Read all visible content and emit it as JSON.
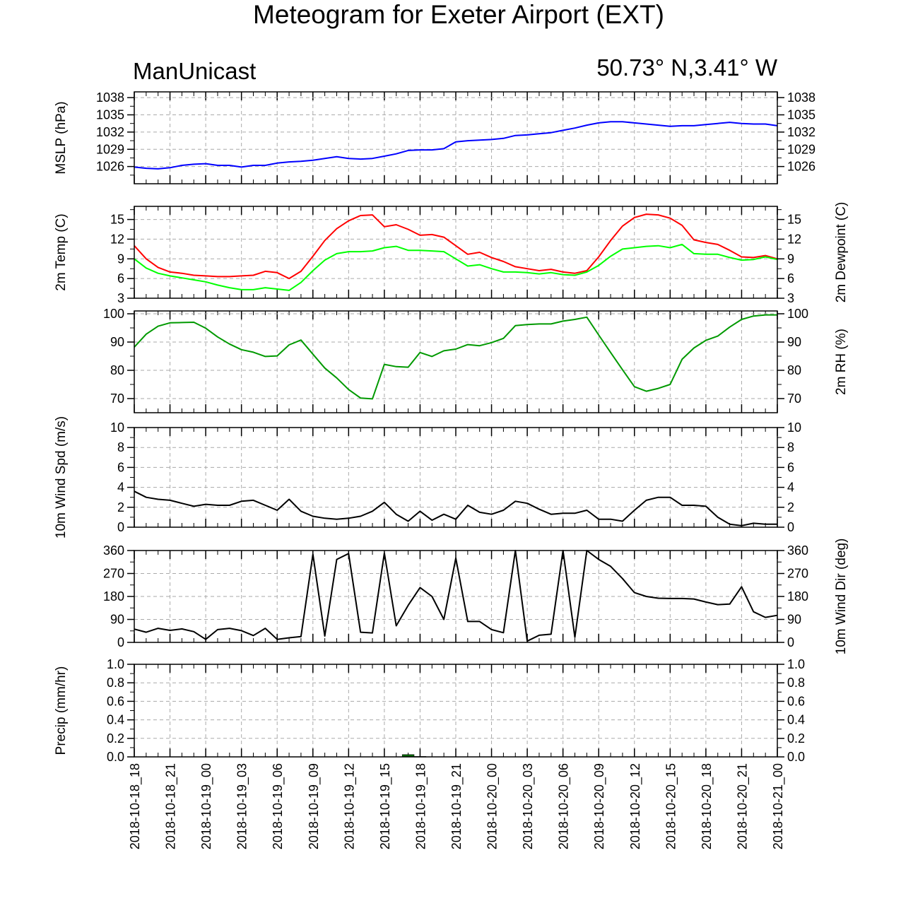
{
  "page_title": "Meteogram for Exeter Airport (EXT)",
  "model_name": "ManUnicast",
  "location": "50.73° N,3.41° W",
  "colors": {
    "mslp": "#0000ff",
    "temperature": "#ff0000",
    "dewpoint": "#00ff00",
    "rh": "#009900",
    "wind": "#000000",
    "precip": "#006400",
    "grid": "#aaaaaa"
  },
  "chart_data": {
    "type": "line",
    "x_axis": {
      "labels": [
        "2018-10-18_18",
        "2018-10-18_21",
        "2018-10-19_00",
        "2018-10-19_03",
        "2018-10-19_06",
        "2018-10-19_09",
        "2018-10-19_12",
        "2018-10-19_15",
        "2018-10-19_18",
        "2018-10-19_21",
        "2018-10-20_00",
        "2018-10-20_03",
        "2018-10-20_06",
        "2018-10-20_09",
        "2018-10-20_12",
        "2018-10-20_15",
        "2018-10-20_18",
        "2018-10-20_21",
        "2018-10-21_00"
      ],
      "hours_range": [
        0,
        54
      ],
      "step_hours": 1,
      "grid": true
    },
    "panels": [
      {
        "id": "mslp",
        "left_title": "MSLP (hPa)",
        "right_title": "",
        "ylim": [
          1023,
          1039
        ],
        "left_ticks": [
          "1026",
          "1029",
          "1032",
          "1035",
          "1038"
        ],
        "right_ticks": [
          "1026",
          "1029",
          "1032",
          "1035",
          "1038"
        ],
        "series": [
          {
            "key": "mslp",
            "values": [
              1025.9,
              1025.7,
              1025.6,
              1025.8,
              1026.2,
              1026.4,
              1026.5,
              1026.2,
              1026.2,
              1025.9,
              1026.2,
              1026.2,
              1026.6,
              1026.8,
              1026.9,
              1027.1,
              1027.4,
              1027.7,
              1027.4,
              1027.3,
              1027.4,
              1027.8,
              1028.2,
              1028.8,
              1028.9,
              1028.9,
              1029.1,
              1030.3,
              1030.5,
              1030.6,
              1030.7,
              1030.9,
              1031.4,
              1031.5,
              1031.7,
              1031.9,
              1032.3,
              1032.7,
              1033.2,
              1033.6,
              1033.8,
              1033.8,
              1033.6,
              1033.4,
              1033.2,
              1033.0,
              1033.1,
              1033.1,
              1033.3,
              1033.5,
              1033.7,
              1033.5,
              1033.4,
              1033.4,
              1033.1
            ]
          }
        ]
      },
      {
        "id": "temp",
        "left_title": "2m Temp (C)",
        "right_title": "2m Dewpoint (C)",
        "ylim": [
          3,
          17
        ],
        "left_ticks": [
          "3",
          "6",
          "9",
          "12",
          "15"
        ],
        "right_ticks": [
          "3",
          "6",
          "9",
          "12",
          "15"
        ],
        "series": [
          {
            "key": "temperature",
            "values": [
              11.0,
              9.0,
              7.7,
              7.0,
              6.8,
              6.5,
              6.4,
              6.3,
              6.3,
              6.4,
              6.5,
              7.1,
              6.9,
              6.0,
              7.1,
              9.4,
              11.8,
              13.6,
              14.8,
              15.6,
              15.7,
              13.9,
              14.2,
              13.5,
              12.6,
              12.7,
              12.3,
              11.0,
              9.7,
              10.0,
              9.2,
              8.6,
              7.8,
              7.5,
              7.2,
              7.4,
              7.0,
              6.8,
              7.2,
              9.3,
              11.8,
              14.0,
              15.3,
              15.8,
              15.7,
              15.2,
              14.1,
              11.9,
              11.5,
              11.2,
              10.3,
              9.3,
              9.2,
              9.5,
              9.0
            ]
          },
          {
            "key": "dewpoint",
            "values": [
              9.0,
              7.6,
              6.8,
              6.4,
              6.1,
              5.8,
              5.5,
              5.0,
              4.6,
              4.3,
              4.3,
              4.6,
              4.4,
              4.2,
              5.4,
              7.2,
              8.8,
              9.8,
              10.1,
              10.1,
              10.2,
              10.7,
              10.9,
              10.3,
              10.3,
              10.2,
              10.1,
              9.0,
              7.9,
              8.1,
              7.5,
              7.0,
              7.0,
              6.9,
              6.7,
              6.9,
              6.6,
              6.5,
              7.0,
              8.0,
              9.4,
              10.5,
              10.7,
              10.9,
              11.0,
              10.7,
              11.2,
              9.8,
              9.7,
              9.7,
              9.2,
              8.8,
              8.9,
              9.3,
              8.9
            ]
          }
        ]
      },
      {
        "id": "rh",
        "left_title": "",
        "right_title": "2m RH (%)",
        "ylim": [
          65,
          101
        ],
        "left_ticks": [
          "70",
          "80",
          "90",
          "100"
        ],
        "right_ticks": [
          "70",
          "80",
          "90",
          "100"
        ],
        "series": [
          {
            "key": "rh",
            "values": [
              88.2,
              92.8,
              95.6,
              96.8,
              96.9,
              97.0,
              94.9,
              91.8,
              89.3,
              87.3,
              86.4,
              84.9,
              85.1,
              89.0,
              90.7,
              85.7,
              80.8,
              77.3,
              73.2,
              70.2,
              69.9,
              82.1,
              81.3,
              81.1,
              86.3,
              84.9,
              86.9,
              87.5,
              89.1,
              88.7,
              89.8,
              91.3,
              95.8,
              96.2,
              96.4,
              96.4,
              97.4,
              98.0,
              98.8,
              92.5,
              86.3,
              80.2,
              74.2,
              72.6,
              73.6,
              75.0,
              83.9,
              87.9,
              90.6,
              92.1,
              95.3,
              98.0,
              99.2,
              99.6,
              99.6
            ]
          }
        ]
      },
      {
        "id": "wind_speed",
        "left_title": "10m Wind Spd (m/s)",
        "right_title": "",
        "ylim": [
          0,
          10
        ],
        "left_ticks": [
          "0",
          "2",
          "4",
          "6",
          "8",
          "10"
        ],
        "right_ticks": [
          "0",
          "2",
          "4",
          "6",
          "8",
          "10"
        ],
        "series": [
          {
            "key": "wind",
            "values": [
              3.6,
              3.0,
              2.8,
              2.7,
              2.4,
              2.1,
              2.3,
              2.2,
              2.2,
              2.6,
              2.7,
              2.2,
              1.7,
              2.8,
              1.6,
              1.1,
              0.9,
              0.8,
              0.9,
              1.1,
              1.6,
              2.5,
              1.3,
              0.6,
              1.6,
              0.7,
              1.3,
              0.8,
              2.2,
              1.5,
              1.3,
              1.7,
              2.6,
              2.4,
              1.8,
              1.3,
              1.4,
              1.4,
              1.7,
              0.8,
              0.8,
              0.6,
              1.7,
              2.7,
              3.0,
              3.0,
              2.2,
              2.2,
              2.1,
              1.0,
              0.3,
              0.15,
              0.4,
              0.3,
              0.3
            ]
          }
        ]
      },
      {
        "id": "wind_dir",
        "left_title": "",
        "right_title": "10m Wind Dir (deg)",
        "ylim": [
          0,
          360
        ],
        "left_ticks": [
          "0",
          "90",
          "180",
          "270",
          "360"
        ],
        "right_ticks": [
          "0",
          "90",
          "180",
          "270",
          "360"
        ],
        "series": [
          {
            "key": "wind",
            "values": [
              52,
              40,
              55,
              47,
              53,
              42,
              12,
              50,
              55,
              46,
              27,
              55,
              12,
              18,
              23,
              345,
              25,
              325,
              348,
              40,
              37,
              350,
              65,
              145,
              215,
              180,
              90,
              330,
              82,
              82,
              50,
              38,
              360,
              5,
              28,
              32,
              360,
              20,
              360,
              325,
              298,
              250,
              195,
              180,
              173,
              172,
              172,
              170,
              158,
              148,
              150,
              218,
              120,
              98,
              106
            ]
          }
        ]
      },
      {
        "id": "precip",
        "left_title": "Precip (mm/hr)",
        "right_title": "",
        "ylim": [
          0,
          1
        ],
        "left_ticks": [
          "0.0",
          "0.2",
          "0.4",
          "0.6",
          "0.8",
          "1.0"
        ],
        "right_ticks": [
          "0.0",
          "0.2",
          "0.4",
          "0.6",
          "0.8",
          "1.0"
        ],
        "bars": [
          {
            "key": "precip",
            "hour": 23,
            "value": 0.025
          },
          {
            "key": "precip",
            "hour": 24,
            "value": 0.005
          }
        ]
      }
    ]
  }
}
